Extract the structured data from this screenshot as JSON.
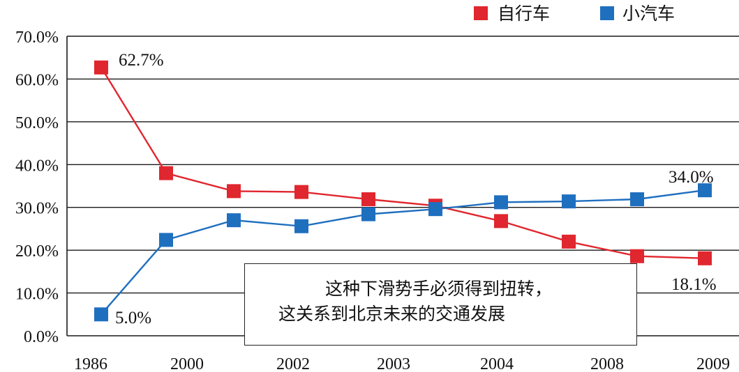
{
  "chart_data": {
    "type": "line",
    "categories": [
      "1986",
      "2000",
      "",
      "2002",
      "2003",
      "",
      "2004",
      "",
      "2008",
      "2009"
    ],
    "series": [
      {
        "name": "自行车",
        "color": "#e0262e",
        "values": [
          62.7,
          38.0,
          33.8,
          33.6,
          31.9,
          30.4,
          26.8,
          22.0,
          18.6,
          18.1
        ]
      },
      {
        "name": "小汽车",
        "color": "#1f6fbf",
        "values": [
          5.0,
          22.4,
          27.0,
          25.6,
          28.4,
          29.6,
          31.2,
          31.4,
          31.9,
          34.0
        ]
      }
    ],
    "data_labels": {
      "bike_first": "62.7%",
      "bike_last": "18.1%",
      "car_first": "5.0%",
      "car_last": "34.0%"
    },
    "y_ticks": [
      "0.0%",
      "10.0%",
      "20.0%",
      "30.0%",
      "40.0%",
      "50.0%",
      "60.0%",
      "70.0%"
    ],
    "ylim": [
      0,
      70
    ],
    "grid": true,
    "legend_position": "top-right",
    "annotation": {
      "line1": "这种下滑势手必须得到扭转，",
      "line2": "这关系到北京未来的交通发展"
    }
  }
}
